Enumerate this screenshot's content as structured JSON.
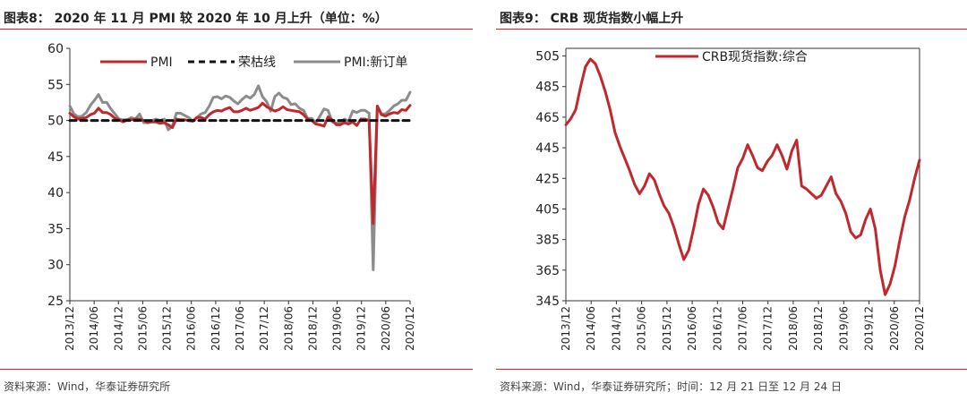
{
  "left": {
    "title": "图表8： 2020 年 11 月 PMI 较 2020 年 10 月上升（单位：%）",
    "source": "资料来源：Wind，华泰证券研究所"
  },
  "right": {
    "title": "图表9： CRB 现货指数小幅上升",
    "source": "资料来源：Wind，华泰证券研究所；时间：12 月 21 日至 12 月 24 日"
  },
  "colors": {
    "red": "#c0282d",
    "gray": "#8c8c8c",
    "black": "#111111",
    "rule": "#c0282d"
  },
  "chart_data": [
    {
      "type": "line",
      "title": "",
      "xlabel": "",
      "ylabel": "",
      "ylim": [
        25,
        60
      ],
      "yticks": [
        25,
        30,
        35,
        40,
        45,
        50,
        55,
        60
      ],
      "xticks": [
        "2013/12",
        "2014/06",
        "2014/12",
        "2015/06",
        "2015/12",
        "2016/06",
        "2016/12",
        "2017/06",
        "2017/12",
        "2018/06",
        "2018/12",
        "2019/06",
        "2019/12",
        "2020/06",
        "2020/12"
      ],
      "legend_position": "top",
      "grid": false,
      "series": [
        {
          "name": "PMI",
          "color": "#c0282d",
          "style": "solid",
          "values": [
            51.0,
            50.5,
            50.2,
            50.3,
            50.4,
            50.8,
            51.0,
            51.7,
            51.1,
            51.1,
            50.8,
            50.3,
            50.1,
            49.8,
            50.1,
            50.1,
            50.2,
            50.2,
            50.0,
            49.7,
            49.8,
            49.8,
            49.6,
            49.7,
            49.4,
            49.0,
            50.2,
            50.1,
            50.1,
            50.0,
            49.9,
            50.4,
            50.4,
            50.2,
            50.8,
            51.2,
            51.4,
            51.3,
            51.6,
            51.8,
            51.2,
            51.2,
            51.4,
            51.7,
            51.4,
            51.6,
            51.8,
            52.4,
            51.9,
            51.6,
            51.3,
            51.5,
            51.9,
            51.5,
            51.4,
            51.3,
            51.2,
            50.8,
            50.2,
            50.0,
            49.5,
            49.4,
            49.2,
            50.5,
            50.1,
            49.4,
            49.4,
            49.7,
            49.5,
            49.8,
            49.3,
            50.2,
            50.2,
            50.0,
            35.7,
            52.0,
            50.8,
            50.6,
            50.9,
            51.1,
            51.0,
            51.5,
            51.4,
            52.1
          ]
        },
        {
          "name": "荣枯线",
          "color": "#111111",
          "style": "dashed",
          "values": [
            50,
            50
          ]
        },
        {
          "name": "PMI:新订单",
          "color": "#8c8c8c",
          "style": "solid",
          "values": [
            52.0,
            50.9,
            50.5,
            50.6,
            51.1,
            52.1,
            52.8,
            53.6,
            52.5,
            52.5,
            51.6,
            50.9,
            50.2,
            50.1,
            50.1,
            50.4,
            50.2,
            50.9,
            49.7,
            49.7,
            50.0,
            50.2,
            50.0,
            50.2,
            48.7,
            49.2,
            51.0,
            51.0,
            50.7,
            50.4,
            49.9,
            50.4,
            50.9,
            51.1,
            52.0,
            53.2,
            53.3,
            53.0,
            53.4,
            53.2,
            52.7,
            52.3,
            52.9,
            53.4,
            53.1,
            53.6,
            54.8,
            53.3,
            52.6,
            51.3,
            53.3,
            53.8,
            53.2,
            53.0,
            52.2,
            52.3,
            51.7,
            51.4,
            50.3,
            50.3,
            49.7,
            50.6,
            51.6,
            51.4,
            49.8,
            49.6,
            49.8,
            50.2,
            49.9,
            51.3,
            51.1,
            51.4,
            51.4,
            51.0,
            29.3,
            52.0,
            50.9,
            50.9,
            51.4,
            52.0,
            52.3,
            52.8,
            52.8,
            53.9
          ]
        }
      ]
    },
    {
      "type": "line",
      "title": "",
      "xlabel": "",
      "ylabel": "",
      "ylim": [
        345,
        510
      ],
      "yticks": [
        345,
        365,
        385,
        405,
        425,
        445,
        465,
        485,
        505
      ],
      "xticks": [
        "2013/12",
        "2014/06",
        "2014/12",
        "2015/06",
        "2015/12",
        "2016/06",
        "2016/12",
        "2017/06",
        "2017/12",
        "2018/06",
        "2018/12",
        "2019/06",
        "2019/12",
        "2020/06",
        "2020/12"
      ],
      "legend_position": "top",
      "grid": false,
      "series": [
        {
          "name": "CRB现货指数:综合",
          "color": "#c0282d",
          "style": "solid",
          "values": [
            460,
            464,
            470,
            485,
            498,
            503,
            500,
            492,
            482,
            470,
            455,
            446,
            438,
            430,
            421,
            415,
            420,
            428,
            424,
            415,
            407,
            402,
            393,
            382,
            372,
            378,
            392,
            408,
            418,
            414,
            406,
            396,
            392,
            405,
            418,
            432,
            438,
            447,
            440,
            432,
            430,
            436,
            440,
            447,
            440,
            431,
            443,
            450,
            420,
            418,
            415,
            412,
            414,
            420,
            426,
            415,
            410,
            402,
            390,
            386,
            388,
            398,
            405,
            392,
            365,
            349,
            356,
            368,
            385,
            400,
            411,
            425,
            437
          ]
        }
      ]
    }
  ]
}
